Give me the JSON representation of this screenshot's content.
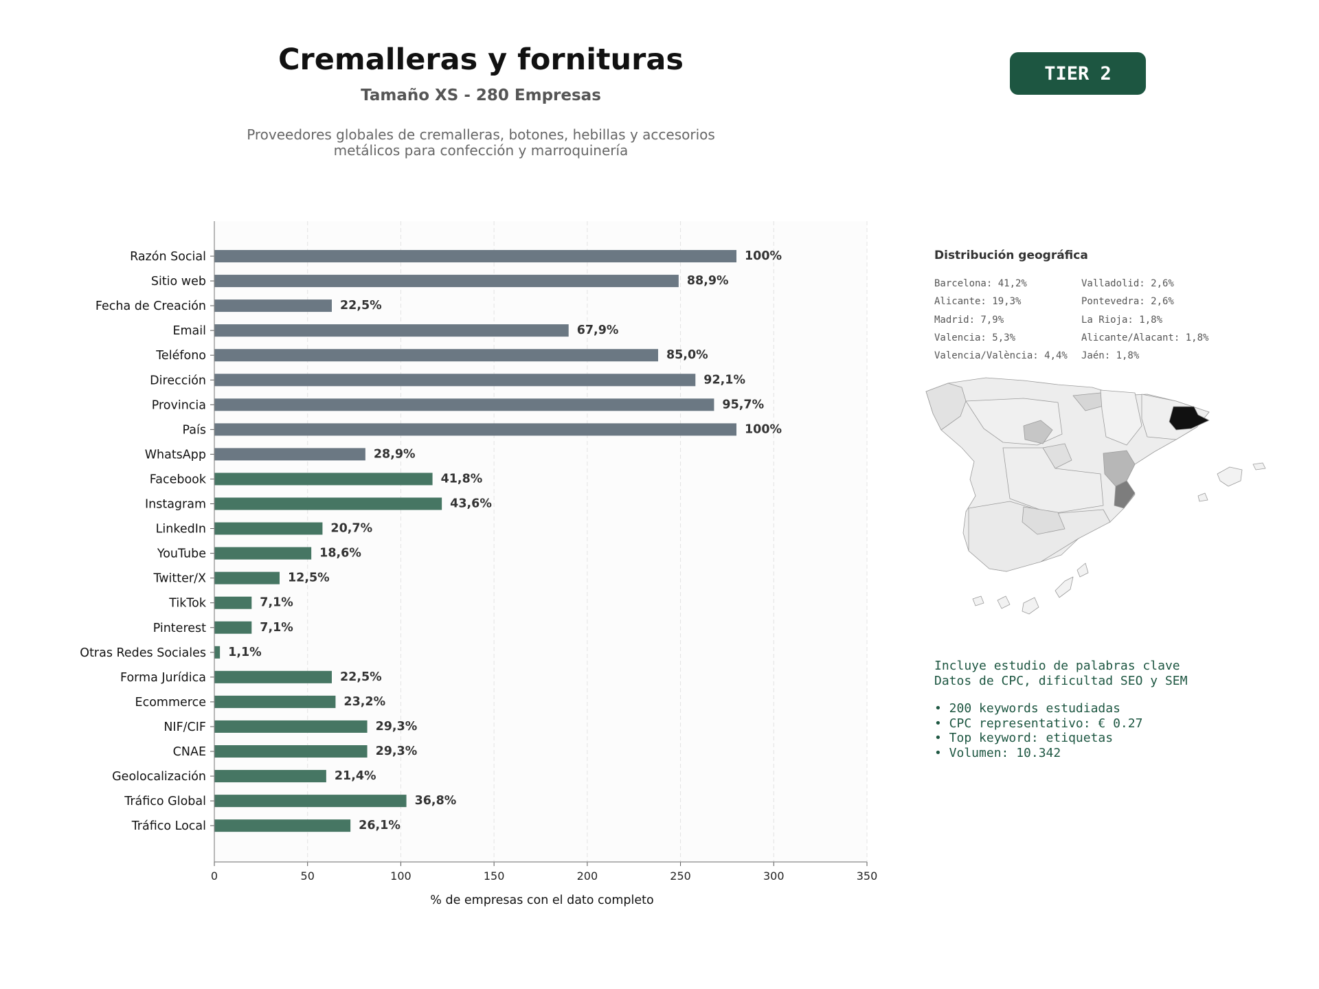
{
  "header": {
    "title": "Cremalleras y fornituras",
    "subtitle": "Tamaño XS - 280 Empresas",
    "description": "Proveedores globales de cremalleras, botones, hebillas y accesorios\nmetálicos para confección y marroquinería",
    "tier": "TIER 2"
  },
  "chart_data": {
    "type": "bar",
    "orientation": "horizontal",
    "xlabel": "% de empresas con el dato completo",
    "xlim": [
      0,
      350
    ],
    "xticks": [
      0,
      50,
      100,
      150,
      200,
      250,
      300,
      350
    ],
    "grid": "vertical dashed",
    "colors": {
      "contact": "#6b7883",
      "social": "#467663"
    },
    "categories": [
      "Razón Social",
      "Sitio web",
      "Fecha de Creación",
      "Email",
      "Teléfono",
      "Dirección",
      "Provincia",
      "País",
      "WhatsApp",
      "Facebook",
      "Instagram",
      "LinkedIn",
      "YouTube",
      "Twitter/X",
      "TikTok",
      "Pinterest",
      "Otras Redes Sociales",
      "Forma Jurídica",
      "Ecommerce",
      "NIF/CIF",
      "CNAE",
      "Geolocalización",
      "Tráfico Global",
      "Tráfico Local"
    ],
    "values": [
      280,
      249,
      63,
      190,
      238,
      258,
      268,
      280,
      81,
      117,
      122,
      58,
      52,
      35,
      20,
      20,
      3,
      63,
      65,
      82,
      82,
      60,
      103,
      73
    ],
    "labels": [
      "100%",
      "88,9%",
      "22,5%",
      "67,9%",
      "85,0%",
      "92,1%",
      "95,7%",
      "100%",
      "28,9%",
      "41,8%",
      "43,6%",
      "20,7%",
      "18,6%",
      "12,5%",
      "7,1%",
      "7,1%",
      "1,1%",
      "22,5%",
      "23,2%",
      "29,3%",
      "29,3%",
      "21,4%",
      "36,8%",
      "26,1%"
    ],
    "groups": [
      "contact",
      "contact",
      "contact",
      "contact",
      "contact",
      "contact",
      "contact",
      "contact",
      "contact",
      "social",
      "social",
      "social",
      "social",
      "social",
      "social",
      "social",
      "social",
      "social",
      "social",
      "social",
      "social",
      "social",
      "social",
      "social"
    ]
  },
  "geo": {
    "title": "Distribución geográfica",
    "col1": [
      "Barcelona: 41,2%",
      "Alicante: 19,3%",
      "Madrid: 7,9%",
      "Valencia: 5,3%",
      "Valencia/València: 4,4%"
    ],
    "col2": [
      "Valladolid: 2,6%",
      "Pontevedra: 2,6%",
      "La Rioja: 1,8%",
      "Alicante/Alacant: 1,8%",
      "Jaén: 1,8%"
    ]
  },
  "keywords": {
    "line1": "Incluye estudio de palabras clave",
    "line2": "Datos de CPC, dificultad SEO y SEM",
    "bullets": [
      "• 200 keywords estudiadas",
      "• CPC representativo: € 0.27",
      "• Top keyword: etiquetas",
      "• Volumen: 10.342"
    ]
  }
}
